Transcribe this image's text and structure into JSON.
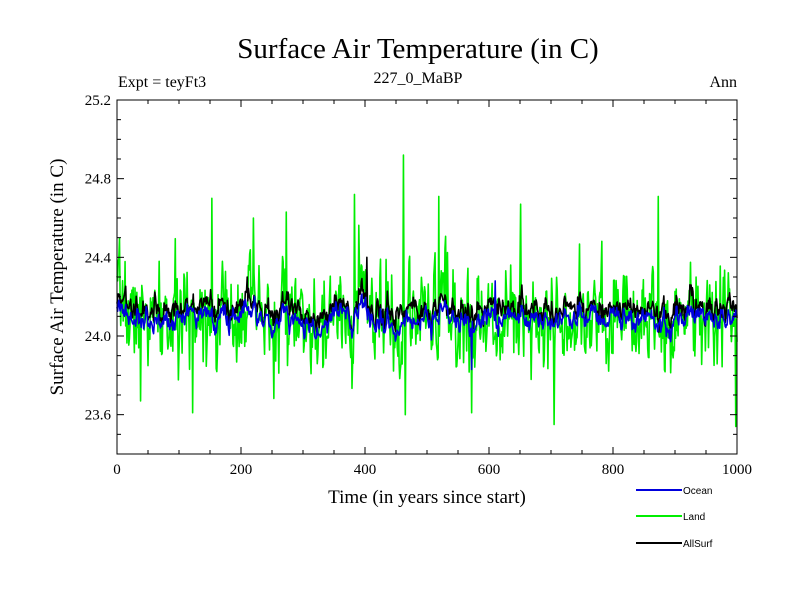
{
  "chart_data": {
    "type": "line",
    "title": "Surface Air Temperature (in C)",
    "subtitle_left": "Expt = teyFt3",
    "subtitle_center": "227_0_MaBP",
    "subtitle_right": "Ann",
    "xlabel": "Time (in years since start)",
    "ylabel": "Surface Air Temperature (in C)",
    "xlim": [
      0,
      1000
    ],
    "ylim": [
      23.4,
      25.2
    ],
    "xticks": [
      0,
      200,
      400,
      600,
      800,
      1000
    ],
    "yticks": [
      23.6,
      24.0,
      24.4,
      24.8,
      25.2
    ],
    "ytick_labels": [
      "23.6",
      "24.0",
      "24.4",
      "24.8",
      "25.2"
    ],
    "grid": false,
    "legend_position": "bottom-right outside",
    "series": [
      {
        "name": "Land",
        "color": "#00ee00",
        "mean": 24.1,
        "stdev": 0.17,
        "min": 23.55,
        "max": 24.92,
        "peaks": [
          [
            462,
            24.92
          ],
          [
            383,
            24.72
          ],
          [
            519,
            24.71
          ],
          [
            153,
            24.7
          ],
          [
            873,
            24.71
          ],
          [
            651,
            24.67
          ],
          [
            220,
            24.6
          ],
          [
            273,
            24.63
          ],
          [
            705,
            23.55
          ],
          [
            122,
            23.61
          ],
          [
            465,
            23.6
          ],
          [
            572,
            23.61
          ],
          [
            998,
            23.54
          ],
          [
            38,
            23.67
          ]
        ]
      },
      {
        "name": "AllSurf",
        "color": "#000000",
        "mean": 24.14,
        "stdev": 0.06,
        "min": 23.9,
        "max": 24.4,
        "peaks": [
          [
            403,
            24.4
          ],
          [
            210,
            24.3
          ]
        ]
      },
      {
        "name": "Ocean",
        "color": "#0000dd",
        "mean": 24.09,
        "stdev": 0.055,
        "min": 23.83,
        "max": 24.29,
        "peaks": [
          [
            572,
            23.83
          ],
          [
            610,
            24.28
          ]
        ]
      }
    ],
    "legend": [
      {
        "name": "Ocean",
        "color": "#0000dd"
      },
      {
        "name": "Land",
        "color": "#00ee00"
      },
      {
        "name": "AllSurf",
        "color": "#000000"
      }
    ]
  }
}
